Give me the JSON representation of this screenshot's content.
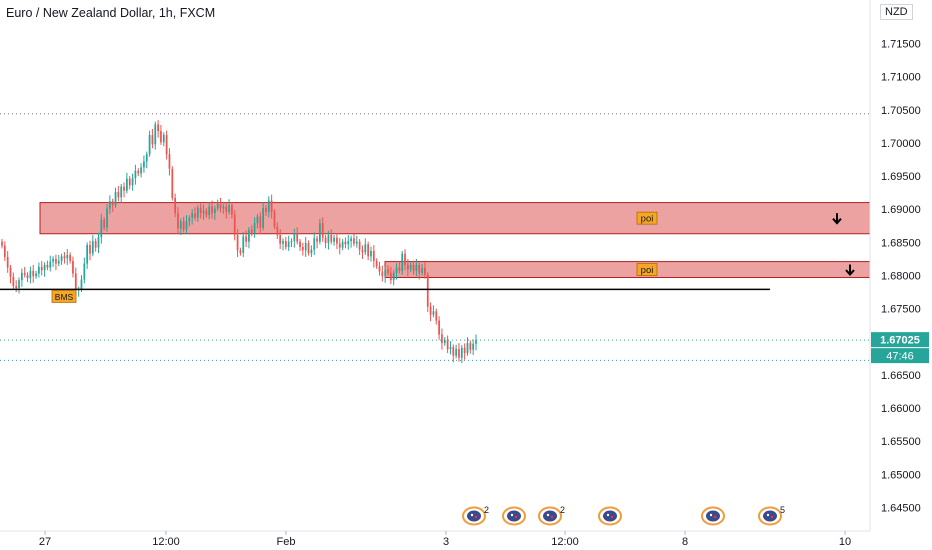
{
  "title": "Euro / New Zealand Dollar, 1h, FXCM",
  "scale_label": "NZD",
  "colors": {
    "up": "#26a69a",
    "down": "#ef5350",
    "zone_fill": "#e0706e",
    "zone_border": "#b22222",
    "bms_line": "#000000"
  },
  "price_badge": {
    "price": "1.67025",
    "countdown": "47:46"
  },
  "zone_labels": [
    "poi",
    "poi"
  ],
  "bms_label": "BMS",
  "event_badges": [
    "2",
    "",
    "2",
    "",
    "",
    "5"
  ],
  "chart_data": {
    "type": "candlestick",
    "title": "Euro / New Zealand Dollar, 1h, FXCM",
    "y_ticks": [
      "1.71500",
      "1.71000",
      "1.70500",
      "1.70000",
      "1.69500",
      "1.69000",
      "1.68500",
      "1.68000",
      "1.67500",
      "1.67000",
      "1.66500",
      "1.66000",
      "1.65500",
      "1.65000",
      "1.64500"
    ],
    "x_ticks": [
      "27",
      "12:00",
      "Feb",
      "3",
      "12:00",
      "8",
      "10"
    ],
    "ylim": [
      1.6435,
      1.7196
    ],
    "last_price": 1.67025,
    "dotted_levels": [
      1.7044,
      1.67025,
      1.6672
    ],
    "zones": [
      {
        "label": "poi",
        "top": 1.691,
        "bottom": 1.6863
      },
      {
        "label": "poi",
        "top": 1.6821,
        "bottom": 1.6797
      }
    ],
    "bms_level": 1.6779,
    "closes": [
      1.6845,
      1.6828,
      1.6812,
      1.6798,
      1.6784,
      1.6781,
      1.6793,
      1.6804,
      1.6801,
      1.6796,
      1.6807,
      1.6799,
      1.6803,
      1.6813,
      1.6808,
      1.6816,
      1.6812,
      1.6821,
      1.6825,
      1.6818,
      1.6822,
      1.6829,
      1.6826,
      1.6831,
      1.6822,
      1.6803,
      1.6778,
      1.6779,
      1.6794,
      1.6818,
      1.6846,
      1.6833,
      1.6852,
      1.6842,
      1.6858,
      1.6884,
      1.6872,
      1.6901,
      1.6912,
      1.6906,
      1.6926,
      1.6918,
      1.6934,
      1.6928,
      1.6946,
      1.6936,
      1.6947,
      1.6958,
      1.6954,
      1.6963,
      1.6972,
      1.6983,
      1.7012,
      1.6998,
      1.7028,
      1.7018,
      1.7001,
      1.7012,
      1.6983,
      1.6961,
      1.6917,
      1.6894,
      1.6871,
      1.6882,
      1.6869,
      1.6882,
      1.6887,
      1.6894,
      1.6887,
      1.6902,
      1.6894,
      1.6898,
      1.6891,
      1.6904,
      1.6894,
      1.6901,
      1.6908,
      1.6901,
      1.6904,
      1.6896,
      1.6906,
      1.6892,
      1.6861,
      1.6838,
      1.6834,
      1.6859,
      1.6851,
      1.6869,
      1.6863,
      1.6879,
      1.6889,
      1.6872,
      1.6902,
      1.6896,
      1.6913,
      1.6896,
      1.6874,
      1.6861,
      1.6848,
      1.6852,
      1.6843,
      1.6851,
      1.6852,
      1.6864,
      1.6851,
      1.6843,
      1.6838,
      1.6849,
      1.6834,
      1.6839,
      1.6856,
      1.6851,
      1.6879,
      1.6857,
      1.6849,
      1.6861,
      1.6851,
      1.6857,
      1.6848,
      1.6842,
      1.6851,
      1.6847,
      1.6852,
      1.6856,
      1.6848,
      1.6851,
      1.6839,
      1.6835,
      1.6847,
      1.6829,
      1.6837,
      1.6822,
      1.6814,
      1.6806,
      1.6799,
      1.6809,
      1.6804,
      1.6793,
      1.6804,
      1.6812,
      1.6807,
      1.6833,
      1.6816,
      1.6809,
      1.6816,
      1.6807,
      1.6816,
      1.6804,
      1.6811,
      1.6801,
      1.6753,
      1.6741,
      1.6746,
      1.6732,
      1.6711,
      1.6698,
      1.6703,
      1.6689,
      1.6692,
      1.6679,
      1.6689,
      1.6676,
      1.6691,
      1.6683,
      1.6698,
      1.6688,
      1.6697,
      1.6702
    ]
  }
}
